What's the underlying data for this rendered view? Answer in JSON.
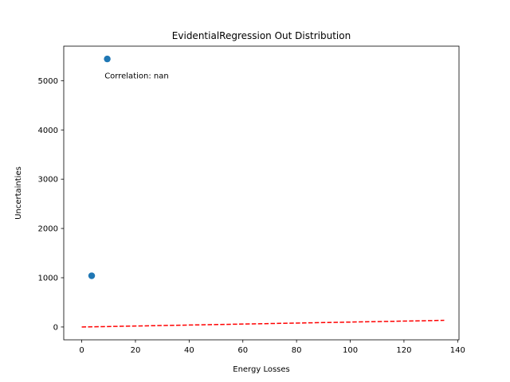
{
  "chart_data": {
    "type": "scatter",
    "title": "EvidentialRegression Out Distribution",
    "xlabel": "Energy Losses",
    "ylabel": "Uncertainties",
    "xlim": [
      -6.7,
      140.5
    ],
    "ylim": [
      -260,
      5700
    ],
    "x_ticks": [
      0,
      20,
      40,
      60,
      80,
      100,
      120,
      140
    ],
    "y_ticks": [
      0,
      1000,
      2000,
      3000,
      4000,
      5000
    ],
    "grid": false,
    "series": [
      {
        "type": "scatter",
        "color": "#1f77b4",
        "points": [
          {
            "x": 3.7,
            "y": 1040
          },
          {
            "x": 9.5,
            "y": 5440
          }
        ]
      },
      {
        "type": "line",
        "style": "dashed",
        "color": "#ff0000",
        "points": [
          {
            "x": 0,
            "y": 0
          },
          {
            "x": 135,
            "y": 135
          }
        ]
      }
    ],
    "annotation": {
      "text": "Correlation: nan",
      "x": 8.5,
      "y": 5100
    }
  }
}
